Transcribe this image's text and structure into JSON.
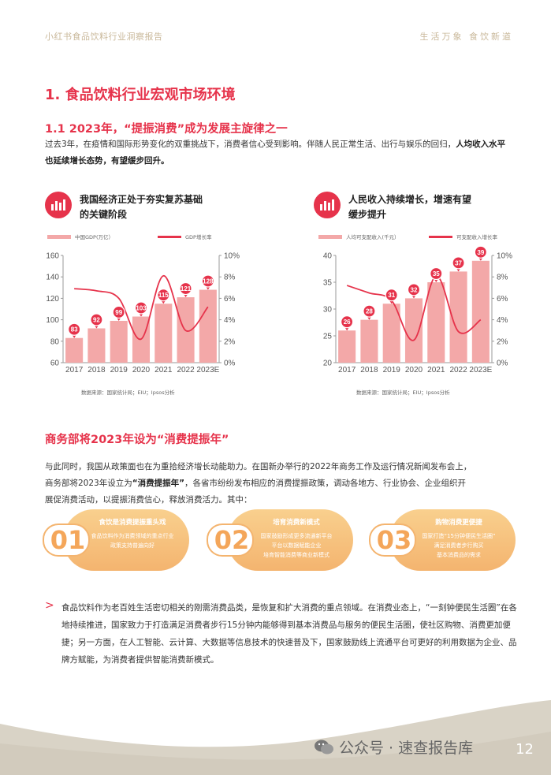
{
  "header": {
    "left": "小红书食品饮料行业洞察报告",
    "right": "生活万象 食饮新道"
  },
  "section": {
    "title": "1. 食品饮料行业宏观市场环境",
    "subtitle": "1.1 2023年，“提振消费”成为发展主旋律之一",
    "intro_plain": "过去3年，在疫情和国际形势变化的双重挑战下，消费者信心受到影响。伴随人民正常生活、出行与娱乐的回归，",
    "intro_bold": "人均收入水平也延续增长态势，有望缓步回升。"
  },
  "charts": {
    "left": {
      "title_line1": "我国经济正处于夯实复苏基础",
      "title_line2": "的关键阶段",
      "legend_bar": "中国GDP(万亿）",
      "legend_line": "GDP增长率",
      "source": "数据来源：国家统计局；EIU；Ipsos分析",
      "icon": "bar-chart-icon"
    },
    "right": {
      "title_line1": "人民收入持续增长，增速有望",
      "title_line2": "缓步提升",
      "legend_bar": "人均可支配收入(千元）",
      "legend_line": "可支配收入增长率",
      "source": "数据来源：国家统计局；EIU；Ipsos分析",
      "icon": "bar-chart-icon"
    }
  },
  "chart_data": [
    {
      "type": "bar",
      "categories": [
        "2017",
        "2018",
        "2019",
        "2020",
        "2021",
        "2022",
        "2023E"
      ],
      "series": [
        {
          "name": "中国GDP(万亿）",
          "values": [
            83,
            92,
            99,
            103,
            115,
            121,
            128
          ],
          "axis": "left"
        },
        {
          "name": "GDP增长率",
          "type": "line",
          "values": [
            6.9,
            6.7,
            6.0,
            2.2,
            8.1,
            3.0,
            5.2
          ],
          "axis": "right"
        }
      ],
      "ylim": [
        60,
        160
      ],
      "yticks": [
        "60",
        "80",
        "100",
        "120",
        "140",
        "160"
      ],
      "y2lim": [
        0,
        10
      ],
      "y2ticks": [
        "0%",
        "2%",
        "4%",
        "6%",
        "8%",
        "10%"
      ],
      "data_labels": [
        "83",
        "92",
        "99",
        "103",
        "115",
        "121",
        "128"
      ],
      "colors": {
        "bar": "#f3a8a8",
        "line": "#e6334b",
        "label_pin": "#e6334b"
      }
    },
    {
      "type": "bar",
      "categories": [
        "2017",
        "2018",
        "2019",
        "2020",
        "2021",
        "2022",
        "2023E"
      ],
      "series": [
        {
          "name": "人均可支配收入(千元）",
          "values": [
            26,
            28,
            31,
            32,
            35,
            37,
            39
          ],
          "axis": "left"
        },
        {
          "name": "可支配收入增长率",
          "type": "line",
          "values": [
            7.2,
            6.5,
            5.8,
            2.1,
            8.1,
            2.9,
            4.0
          ],
          "axis": "right"
        }
      ],
      "ylim": [
        20,
        40
      ],
      "yticks": [
        "20",
        "25",
        "30",
        "35",
        "40"
      ],
      "y2lim": [
        0,
        10
      ],
      "y2ticks": [
        "0%",
        "2%",
        "4%",
        "6%",
        "8%",
        "10%"
      ],
      "data_labels": [
        "26",
        "28",
        "31",
        "32",
        "35",
        "37",
        "39"
      ],
      "colors": {
        "bar": "#f3a8a8",
        "line": "#e6334b",
        "label_pin": "#e6334b"
      }
    }
  ],
  "policy": {
    "title": "商务部将2023年设为“消费提振年”",
    "para_line1": "与此同时，我国从政策面也在为重拾经济增长动能助力。在国新办举行的2022年商务工作及运行情况新闻发布会上，",
    "para_line2_a": "商务部将2023年设立为",
    "para_line2_b": "“消费提振年”",
    "para_line2_c": "，各省市纷纷发布相应的消费提振政策，调动各地方、行业协会、企业组织开",
    "para_line3": "展促消费活动，以提振消费信心，释放消费活力。其中："
  },
  "cards": [
    {
      "num": "01",
      "title": "食饮是消费提振重头戏",
      "line1": "食品饮料作为消费领域的重点行业",
      "line2": "政策支持普遍向好",
      "line3": ""
    },
    {
      "num": "02",
      "title": "培育消费新模式",
      "line1": "国家鼓励形成更多流通新平台",
      "line2": "平台以数据赋能企业",
      "line3": "培育智能消费等商业新模式"
    },
    {
      "num": "03",
      "title": "购物消费更便捷",
      "line1": "国家打造“15分钟便民生活圈”",
      "line2": "满足消费者步行购买",
      "line3": "基本消费品的需求"
    }
  ],
  "bullet": {
    "arrow": ">",
    "text": "食品饮料作为老百姓生活密切相关的刚需消费品类，是恢复和扩大消费的重点领域。在消费业态上，“一刻钟便民生活圈”在各地持续推进，国家致力于打造满足消费者步行15分钟内能够得到基本消费品与服务的便民生活圈，使社区购物、消费更加便捷；另一方面，在人工智能、云计算、大数据等信息技术的快速普及下，国家鼓励线上流通平台可更好的利用数据为企业、品牌方赋能，为消费者提供智能消费新模式。"
  },
  "footer": {
    "watermark": "公众号 · 速查报告库",
    "watermark_icon": "wechat-icon",
    "page": "12"
  }
}
